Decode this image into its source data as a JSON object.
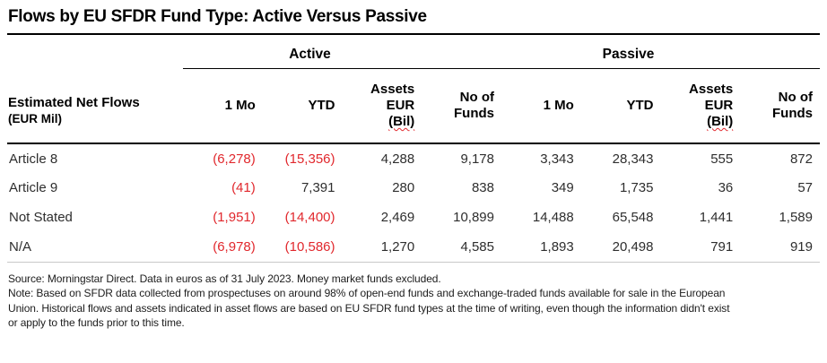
{
  "title": "Flows by EU SFDR Fund Type: Active Versus Passive",
  "colors": {
    "negative": "#e1282d",
    "rule": "#000000"
  },
  "table": {
    "corner": {
      "title": "Estimated Net Flows",
      "subtitle": "(EUR Mil)"
    },
    "groups": [
      {
        "label": "Active",
        "columns": [
          [
            "1 Mo"
          ],
          [
            "YTD"
          ],
          [
            "Assets",
            "EUR",
            "(Bil)"
          ],
          [
            "No of",
            "Funds"
          ]
        ]
      },
      {
        "label": "Passive",
        "columns": [
          [
            "1 Mo"
          ],
          [
            "YTD"
          ],
          [
            "Assets",
            "EUR",
            "(Bil)"
          ],
          [
            "No of",
            "Funds"
          ]
        ]
      }
    ],
    "rows": [
      {
        "label": "Article 8",
        "values": [
          "(6,278)",
          "(15,356)",
          "4,288",
          "9,178",
          "3,343",
          "28,343",
          "555",
          "872"
        ]
      },
      {
        "label": "Article 9",
        "values": [
          "(41)",
          "7,391",
          "280",
          "838",
          "349",
          "1,735",
          "36",
          "57"
        ]
      },
      {
        "label": "Not Stated",
        "values": [
          "(1,951)",
          "(14,400)",
          "2,469",
          "10,899",
          "14,488",
          "65,548",
          "1,441",
          "1,589"
        ]
      },
      {
        "label": "N/A",
        "values": [
          "(6,978)",
          "(10,586)",
          "1,270",
          "4,585",
          "1,893",
          "20,498",
          "791",
          "919"
        ]
      }
    ]
  },
  "footer": {
    "lines": [
      "Source: Morningstar Direct. Data in euros as of 31 July 2023. Money market funds excluded.",
      "Note: Based on SFDR data collected from prospectuses on around 98% of open-end funds and exchange-traded funds available for sale in the European",
      "Union. Historical flows and assets indicated in asset flows are based on EU SFDR fund types at the time of writing, even though the information didn't exist",
      "or apply to the funds prior to this time."
    ]
  },
  "chart_data": {
    "type": "table",
    "title": "Flows by EU SFDR Fund Type: Active Versus Passive",
    "row_label_header": "Estimated Net Flows (EUR Mil)",
    "column_groups": [
      "Active",
      "Passive"
    ],
    "columns": [
      "Active 1 Mo",
      "Active YTD",
      "Active Assets EUR (Bil)",
      "Active No of Funds",
      "Passive 1 Mo",
      "Passive YTD",
      "Passive Assets EUR (Bil)",
      "Passive No of Funds"
    ],
    "rows": [
      {
        "label": "Article 8",
        "values": [
          -6278,
          -15356,
          4288,
          9178,
          3343,
          28343,
          555,
          872
        ]
      },
      {
        "label": "Article 9",
        "values": [
          -41,
          7391,
          280,
          838,
          349,
          1735,
          36,
          57
        ]
      },
      {
        "label": "Not Stated",
        "values": [
          -1951,
          -14400,
          2469,
          10899,
          14488,
          65548,
          1441,
          1589
        ]
      },
      {
        "label": "N/A",
        "values": [
          -6978,
          -10586,
          1270,
          4585,
          1893,
          20498,
          791,
          919
        ]
      }
    ],
    "notes": "Negative values shown in parentheses and red. Source: Morningstar Direct. Data in euros as of 31 July 2023."
  }
}
